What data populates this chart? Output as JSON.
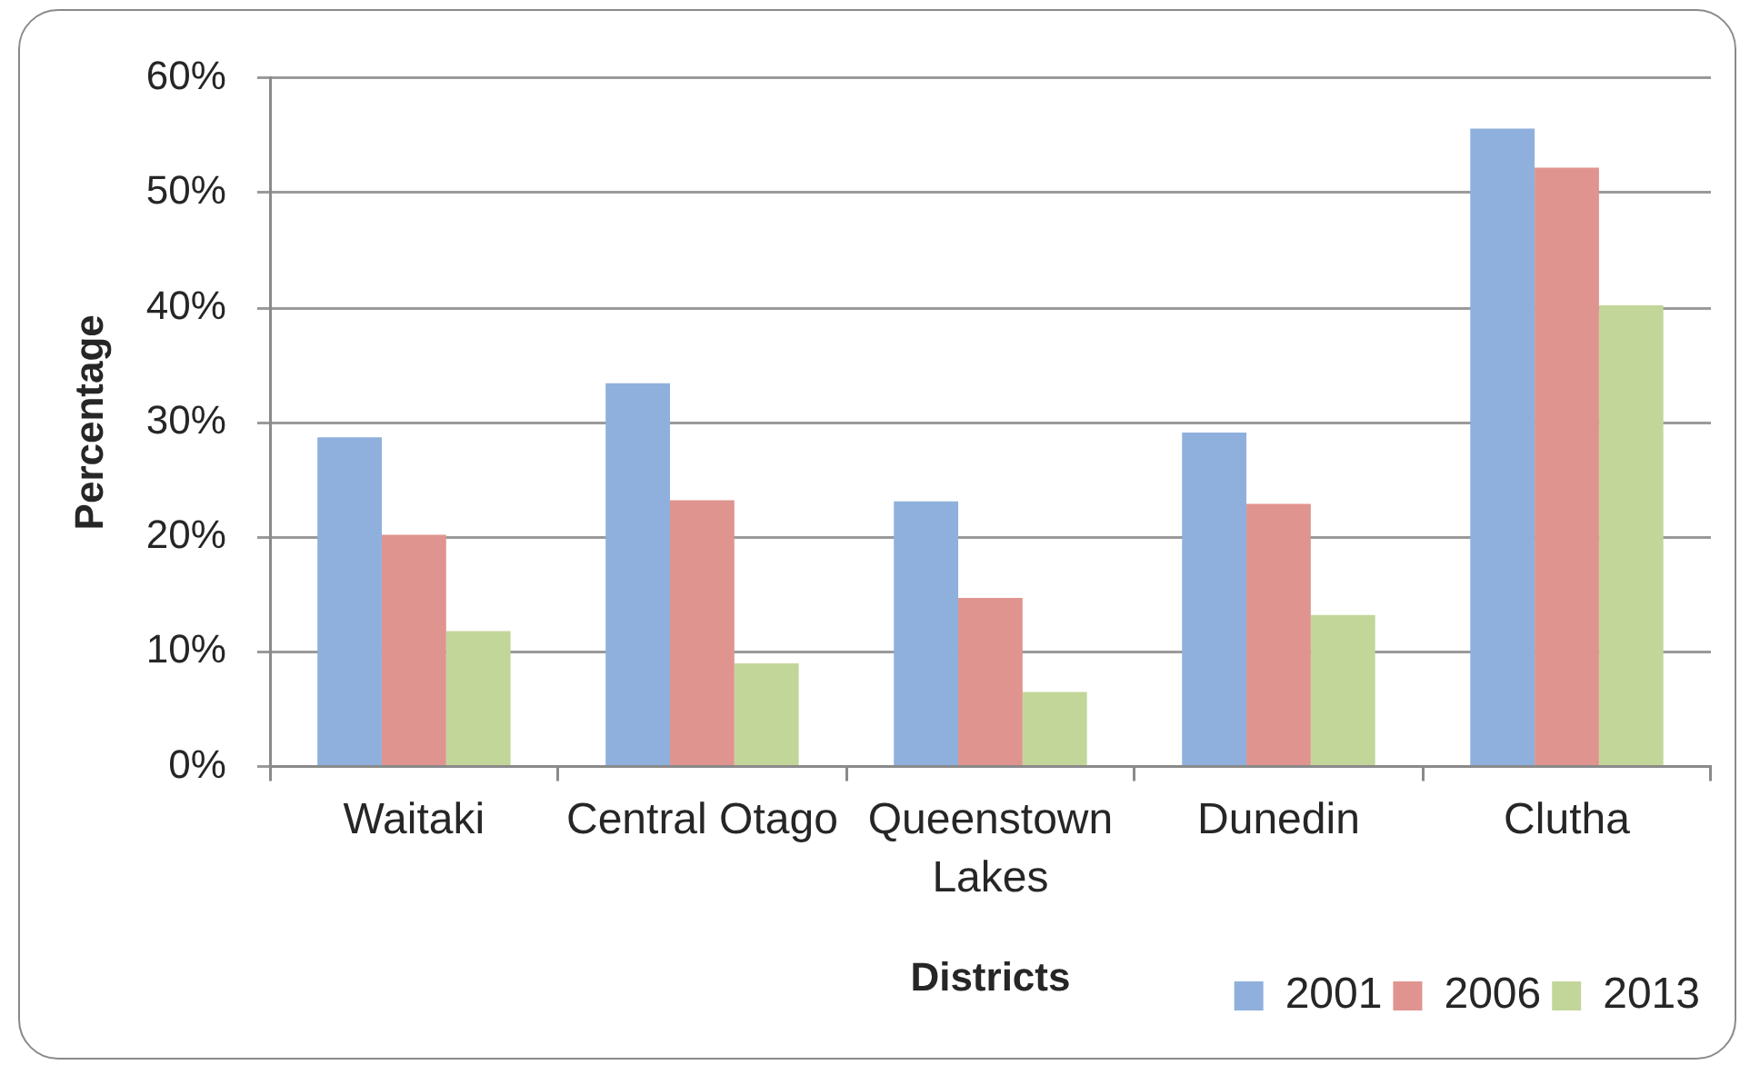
{
  "chart_data": {
    "type": "bar",
    "xlabel": "Districts",
    "ylabel": "Percentage",
    "categories": [
      "Waitaki",
      "Central Otago",
      "Queenstown Lakes",
      "Dunedin",
      "Clutha"
    ],
    "series": [
      {
        "name": "2001",
        "color": "#8fb0dc",
        "values": [
          28.7,
          33.4,
          23.1,
          29.1,
          55.6
        ]
      },
      {
        "name": "2006",
        "color": "#e0948f",
        "values": [
          20.2,
          23.2,
          14.7,
          22.9,
          52.2
        ]
      },
      {
        "name": "2013",
        "color": "#c3d69a",
        "values": [
          11.8,
          9.0,
          6.5,
          13.2,
          40.2
        ]
      }
    ],
    "ylim": [
      0,
      60
    ],
    "yticks": [
      {
        "value": 0,
        "label": "0%"
      },
      {
        "value": 10,
        "label": "10%"
      },
      {
        "value": 20,
        "label": "20%"
      },
      {
        "value": 30,
        "label": "30%"
      },
      {
        "value": 40,
        "label": "40%"
      },
      {
        "value": 50,
        "label": "50%"
      },
      {
        "value": 60,
        "label": "60%"
      }
    ],
    "grid": "y",
    "legend": "bottom right"
  }
}
